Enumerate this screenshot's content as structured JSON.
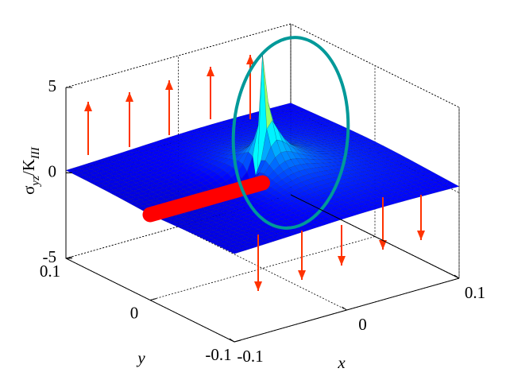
{
  "chart_data": {
    "type": "surface3d",
    "zlabel": {
      "symbol": "σ",
      "symbol_sub": "yz",
      "over": "/K",
      "over_sub": "III"
    },
    "xlabel": "x",
    "ylabel": "y",
    "xlim": [
      -0.1,
      0.1
    ],
    "ylim": [
      -0.1,
      0.1
    ],
    "zlim": [
      -5,
      5
    ],
    "xticks": [
      -0.1,
      0,
      0.1
    ],
    "yticks": [
      -0.1,
      0,
      0.1
    ],
    "zticks": [
      -5,
      0,
      5
    ],
    "grid": true,
    "colormap": "jet",
    "crack_color": "#ff0000",
    "arrow_color": "#ff3300",
    "highlight_color": "#009999"
  }
}
